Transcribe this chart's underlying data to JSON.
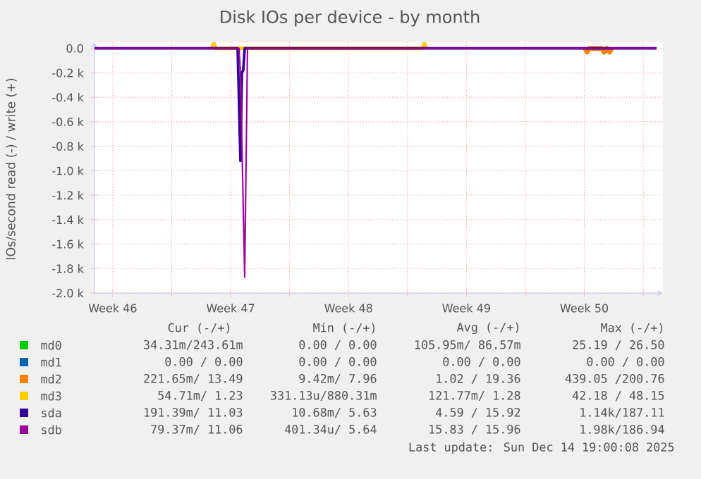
{
  "chart_data": {
    "type": "line",
    "title": "Disk IOs per device - by month",
    "ylabel": "IOs/second read (-) / write (+)",
    "xlim": [
      "2025-11-11T10:00",
      "2025-12-15T04:00"
    ],
    "xticks": [
      {
        "value": "2025-11-12T12:00",
        "label": "Week 46"
      },
      {
        "value": "2025-11-16T00:00",
        "label": null
      },
      {
        "value": "2025-11-19T12:00",
        "label": "Week 47"
      },
      {
        "value": "2025-11-23T00:00",
        "label": null
      },
      {
        "value": "2025-11-26T12:00",
        "label": "Week 48"
      },
      {
        "value": "2025-11-30T00:00",
        "label": null
      },
      {
        "value": "2025-12-03T12:00",
        "label": "Week 49"
      },
      {
        "value": "2025-12-07T00:00",
        "label": null
      },
      {
        "value": "2025-12-10T12:00",
        "label": "Week 50"
      },
      {
        "value": "2025-12-14T00:00",
        "label": null
      }
    ],
    "ylim": [
      -2000,
      50
    ],
    "yticks": [
      {
        "value": -2000,
        "label": "-2.0 k"
      },
      {
        "value": -1800,
        "label": "-1.8 k"
      },
      {
        "value": -1600,
        "label": "-1.6 k"
      },
      {
        "value": -1400,
        "label": "-1.4 k"
      },
      {
        "value": -1200,
        "label": "-1.2 k"
      },
      {
        "value": -1000,
        "label": "-1.0 k"
      },
      {
        "value": -800,
        "label": "-0.8 k"
      },
      {
        "value": -600,
        "label": "-0.6 k"
      },
      {
        "value": -400,
        "label": "-0.4 k"
      },
      {
        "value": -200,
        "label": "-0.2 k"
      },
      {
        "value": 0,
        "label": "0.0"
      }
    ],
    "grid": true,
    "legend": "bottom",
    "marker": "none",
    "line_style": "solid",
    "series": [
      {
        "name": "md0",
        "color": "#00cc00"
      },
      {
        "name": "md1",
        "color": "#0066b3"
      },
      {
        "name": "md2",
        "color": "#ff8000",
        "x": [
          "2025-12-10T13:00",
          "2025-12-10T16:00",
          "2025-12-10T19:00",
          "2025-12-11T13:00",
          "2025-12-11T16:00",
          "2025-12-11T20:00",
          "2025-12-12T00:00",
          "2025-12-12T03:00"
        ],
        "values": [
          0,
          -30,
          0,
          0,
          -30,
          0,
          -30,
          0
        ]
      },
      {
        "name": "md3",
        "color": "#ffcc00",
        "x": [
          "2025-11-18T09:00",
          "2025-11-18T12:00",
          "2025-11-18T15:00",
          "2025-11-30T21:00",
          "2025-12-01T00:00",
          "2025-12-01T03:00"
        ],
        "values": [
          0,
          40,
          0,
          0,
          40,
          0
        ]
      },
      {
        "name": "sda",
        "color": "#330099",
        "x": [
          "2025-11-11T10:00",
          "2025-11-19T22:00",
          "2025-11-20T02:00",
          "2025-11-20T04:00",
          "2025-11-20T06:00",
          "2025-11-20T08:00",
          "2025-11-30T00:00",
          "2025-12-14T19:00"
        ],
        "values": [
          0,
          0,
          -920,
          -200,
          -180,
          0,
          0,
          0
        ]
      },
      {
        "name": "sdb",
        "color": "#990099",
        "x": [
          "2025-11-11T10:00",
          "2025-11-20T00:00",
          "2025-11-20T02:00",
          "2025-11-20T08:00",
          "2025-11-20T12:00",
          "2025-11-30T00:00",
          "2025-12-14T19:00"
        ],
        "values": [
          0,
          0,
          -200,
          -1870,
          0,
          0,
          0
        ]
      }
    ],
    "annotations": [
      "Cur (-/+)",
      "Min (-/+)",
      "Avg (-/+)",
      "Max (-/+)",
      "34.31m/243.61m",
      "0.00 /  0.00",
      "105.95m/ 86.57m",
      "25.19 / 26.50",
      "0.00 /  0.00",
      "0.00 /  0.00",
      "0.00 /  0.00",
      "0.00 /  0.00",
      "221.65m/ 13.49",
      "9.42m/  7.96",
      "1.02 / 19.36",
      "439.05 /200.76",
      "54.71m/  1.23",
      "331.13u/880.31m",
      "121.77m/  1.28",
      "42.18 / 48.15",
      "191.39m/ 11.03",
      "10.68m/  5.63",
      "4.59 / 15.92",
      "1.14k/187.11",
      "79.37m/ 11.06",
      "401.34u/  5.64",
      "15.83 / 15.96",
      "1.98k/186.94",
      "Last update: Sun Dec 14 19:00:08 2025"
    ]
  }
}
